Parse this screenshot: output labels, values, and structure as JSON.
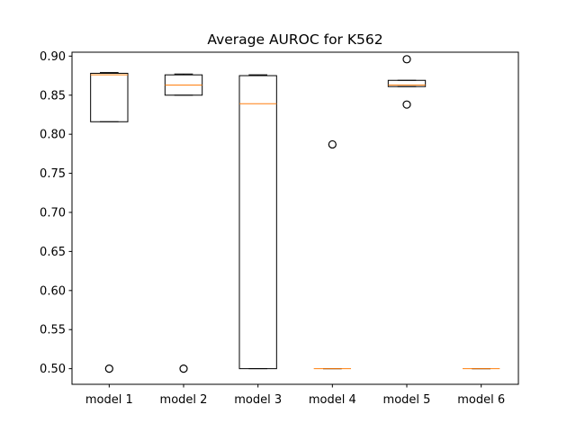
{
  "chart_data": {
    "type": "boxplot",
    "title": "Average AUROC for K562",
    "xlabel": "",
    "ylabel": "",
    "ylim": [
      0.48,
      0.905
    ],
    "yticks": [
      "0.50",
      "0.55",
      "0.60",
      "0.65",
      "0.70",
      "0.75",
      "0.80",
      "0.85",
      "0.90"
    ],
    "grid": false,
    "categories": [
      "model 1",
      "model 2",
      "model 3",
      "model 4",
      "model 5",
      "model 6"
    ],
    "boxes": [
      {
        "q1": 0.816,
        "median": 0.876,
        "q3": 0.878,
        "whisker_low": 0.816,
        "whisker_high": 0.879,
        "outliers": [
          0.5
        ]
      },
      {
        "q1": 0.85,
        "median": 0.863,
        "q3": 0.876,
        "whisker_low": 0.85,
        "whisker_high": 0.877,
        "outliers": [
          0.5
        ]
      },
      {
        "q1": 0.5,
        "median": 0.839,
        "q3": 0.875,
        "whisker_low": 0.5,
        "whisker_high": 0.876,
        "outliers": []
      },
      {
        "q1": 0.5,
        "median": 0.5,
        "q3": 0.5,
        "whisker_low": 0.5,
        "whisker_high": 0.5,
        "outliers": [
          0.787
        ]
      },
      {
        "q1": 0.861,
        "median": 0.863,
        "q3": 0.869,
        "whisker_low": 0.861,
        "whisker_high": 0.869,
        "outliers": [
          0.896,
          0.838
        ]
      },
      {
        "q1": 0.5,
        "median": 0.5,
        "q3": 0.5,
        "whisker_low": 0.5,
        "whisker_high": 0.5,
        "outliers": []
      }
    ],
    "colors": {
      "box": "#000000",
      "median": "#ff7f0e",
      "outlier": "#000000"
    }
  }
}
